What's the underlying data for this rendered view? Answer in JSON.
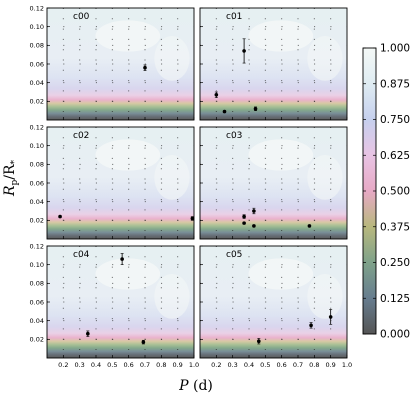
{
  "chart_data": {
    "type": "scatter",
    "xlabel": "P (d)",
    "ylabel": "Rp/R*",
    "xlim": [
      0.1,
      1.0
    ],
    "ylim": [
      0.0,
      0.12
    ],
    "x_ticks": [
      0.2,
      0.3,
      0.4,
      0.5,
      0.6,
      0.7,
      0.8,
      0.9,
      1.0
    ],
    "y_ticks": [
      0.02,
      0.04,
      0.06,
      0.08,
      0.1,
      0.12
    ],
    "grid": "dotted",
    "colorbar": {
      "ticks": [
        "1.000",
        "0.875",
        "0.750",
        "0.625",
        "0.500",
        "0.375",
        "0.250",
        "0.125",
        "0.000"
      ],
      "colors_top_to_bottom": [
        "#f4f8f6",
        "#dfecf2",
        "#c6d0ee",
        "#e8c4e4",
        "#e7a9c5",
        "#b8b87e",
        "#7fa28a",
        "#677d8f",
        "#555555"
      ]
    },
    "panels": [
      {
        "name": "c00",
        "points": [
          {
            "x": 0.7,
            "y": 0.056,
            "yerr": 0.003
          }
        ]
      },
      {
        "name": "c01",
        "points": [
          {
            "x": 0.2,
            "y": 0.027,
            "yerr": 0.003
          },
          {
            "x": 0.25,
            "y": 0.009,
            "yerr": 0.001
          },
          {
            "x": 0.37,
            "y": 0.074,
            "yerr": 0.013
          },
          {
            "x": 0.44,
            "y": 0.012,
            "yerr": 0.002
          }
        ]
      },
      {
        "name": "c02",
        "points": [
          {
            "x": 0.18,
            "y": 0.024,
            "yerr": 0.001
          },
          {
            "x": 0.99,
            "y": 0.022,
            "yerr": 0.002
          }
        ]
      },
      {
        "name": "c03",
        "points": [
          {
            "x": 0.37,
            "y": 0.024,
            "yerr": 0.002
          },
          {
            "x": 0.37,
            "y": 0.017,
            "yerr": 0.001
          },
          {
            "x": 0.43,
            "y": 0.03,
            "yerr": 0.003
          },
          {
            "x": 0.43,
            "y": 0.014,
            "yerr": 0.001
          },
          {
            "x": 0.77,
            "y": 0.014,
            "yerr": 0.001
          }
        ]
      },
      {
        "name": "c04",
        "points": [
          {
            "x": 0.35,
            "y": 0.026,
            "yerr": 0.003
          },
          {
            "x": 0.56,
            "y": 0.106,
            "yerr": 0.006
          },
          {
            "x": 0.69,
            "y": 0.017,
            "yerr": 0.002
          }
        ]
      },
      {
        "name": "c05",
        "points": [
          {
            "x": 0.46,
            "y": 0.018,
            "yerr": 0.003
          },
          {
            "x": 0.78,
            "y": 0.035,
            "yerr": 0.003
          },
          {
            "x": 0.9,
            "y": 0.044,
            "yerr": 0.008
          }
        ]
      }
    ]
  }
}
